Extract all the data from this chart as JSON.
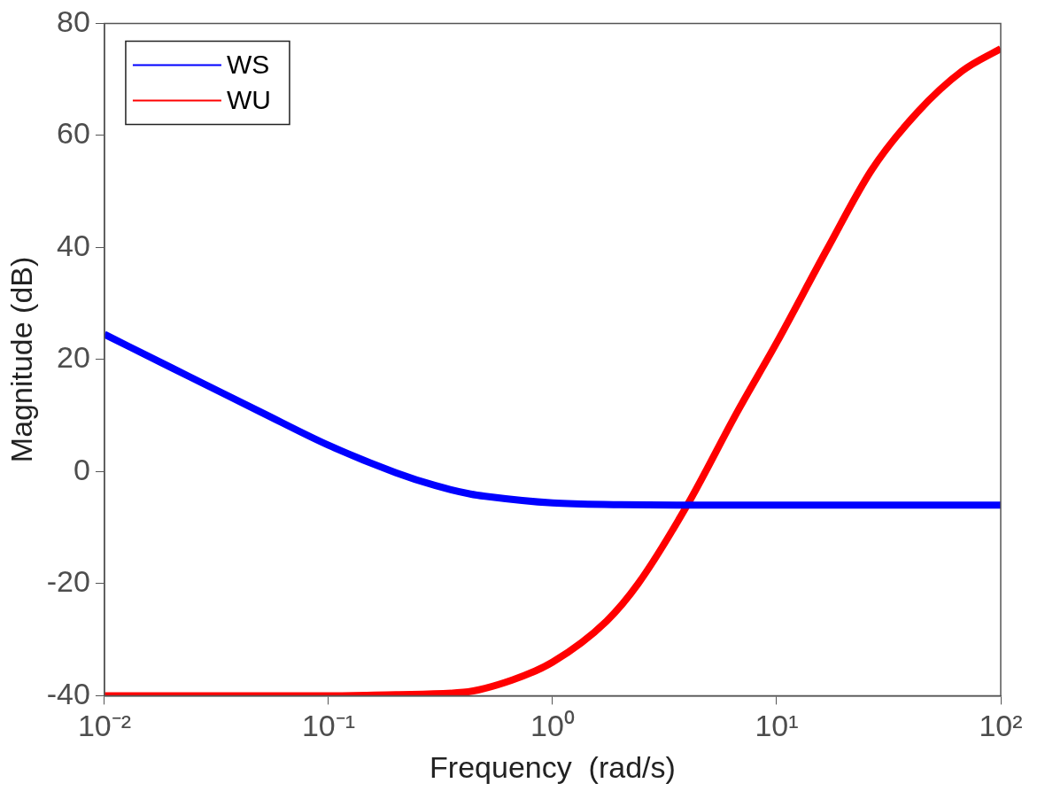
{
  "chart_data": {
    "type": "line",
    "xlabel": "Frequency  (rad/s)",
    "ylabel": "Magnitude (dB)",
    "xlim": [
      0.01,
      100
    ],
    "xticks": [
      {
        "value": 0.01,
        "label": "10⁻²"
      },
      {
        "value": 0.1,
        "label": "10⁻¹"
      },
      {
        "value": 1,
        "label": "10⁰"
      },
      {
        "value": 10,
        "label": "10¹"
      },
      {
        "value": 100,
        "label": "10²"
      }
    ],
    "ylim": [
      -40,
      80
    ],
    "yticks": [
      -40,
      -20,
      0,
      20,
      40,
      60,
      80
    ],
    "log": "x",
    "grid": false,
    "legend": "top left",
    "marker": "none",
    "line_style": "solid",
    "series": [
      {
        "name": "WS",
        "color": "#0000ff",
        "x": [
          0.01,
          0.02,
          0.05,
          0.1,
          0.2,
          0.3,
          0.43,
          0.5,
          1,
          2,
          4,
          10,
          100
        ],
        "values": [
          24.5,
          18.5,
          10.6,
          4.7,
          -0.2,
          -2.5,
          -4,
          -4.4,
          -5.6,
          -5.9,
          -6,
          -6,
          -6
        ]
      },
      {
        "name": "WU",
        "color": "#ff0000",
        "x": [
          0.01,
          0.1,
          0.2,
          0.4,
          0.66,
          1,
          1.74,
          2.41,
          4,
          6.66,
          10,
          16.8,
          26.6,
          42.4,
          67.3,
          100
        ],
        "values": [
          -40,
          -40,
          -39.8,
          -39.4,
          -37.2,
          -34,
          -26.7,
          -20,
          -5.9,
          10.6,
          23,
          39.7,
          53.9,
          64.1,
          71.5,
          75.5
        ]
      }
    ]
  }
}
